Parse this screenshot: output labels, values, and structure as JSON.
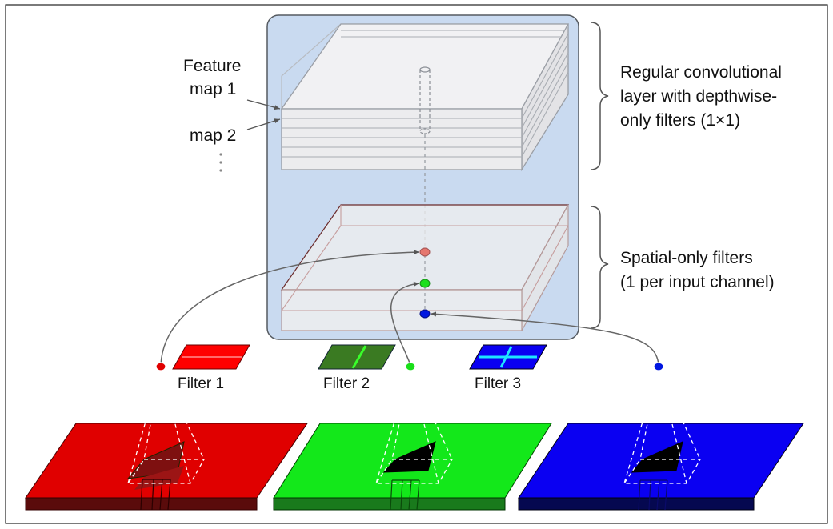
{
  "labels": {
    "feature_map_1_line1": "Feature",
    "feature_map_1_line2": "map 1",
    "feature_map_2": "map 2",
    "ellipsis": "⋮",
    "regular_layer_line1": "Regular convolutional",
    "regular_layer_line2": "layer with depthwise-",
    "regular_layer_line3": "only filters (1×1)",
    "spatial_line1": "Spatial-only filters",
    "spatial_line2": "(1 per input channel)",
    "filter_1": "Filter 1",
    "filter_2": "Filter 2",
    "filter_3": "Filter 3"
  },
  "colors": {
    "panel_fill": "#c9daf0",
    "panel_stroke": "#555a60",
    "red": "#e00000",
    "red_dark": "#5a0b0b",
    "green": "#13e81a",
    "green_dark": "#197a1c",
    "green_filter": "#3a7a22",
    "green_filter_line": "#39ff2a",
    "blue": "#0a00f2",
    "blue_dark": "#050850",
    "blue_filter_line": "#1ee6ff",
    "point_red": "#e5776f",
    "point_green": "#1adf1a",
    "point_blue": "#0016e0"
  },
  "channels": [
    "red",
    "green",
    "blue"
  ]
}
